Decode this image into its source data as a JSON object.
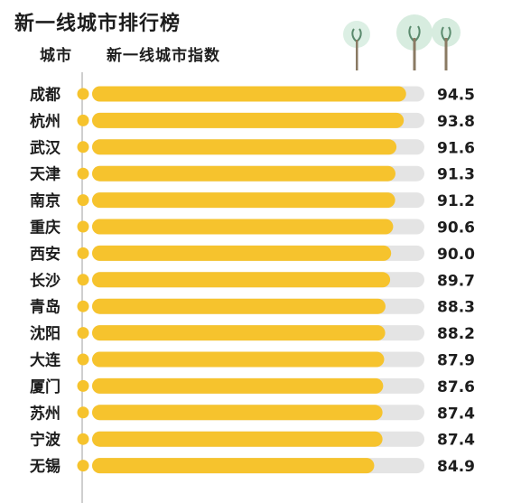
{
  "title": "新一线城市排行榜",
  "header": {
    "col_city": "城市",
    "col_index": "新一线城市指数"
  },
  "colors": {
    "bar": "#f6c32d",
    "track": "#e4e4e4",
    "dot": "#f6c32d",
    "axis": "#cfcfcf",
    "text": "#1d1d1d"
  },
  "chart_data": {
    "type": "bar",
    "orientation": "horizontal",
    "title": "新一线城市排行榜",
    "xlabel": "新一线城市指数",
    "ylabel": "城市",
    "categories": [
      "成都",
      "杭州",
      "武汉",
      "天津",
      "南京",
      "重庆",
      "西安",
      "长沙",
      "青岛",
      "沈阳",
      "大连",
      "厦门",
      "苏州",
      "宁波",
      "无锡"
    ],
    "values": [
      94.5,
      93.8,
      91.6,
      91.3,
      91.2,
      90.6,
      90.0,
      89.7,
      88.3,
      88.2,
      87.9,
      87.6,
      87.4,
      87.4,
      84.9
    ],
    "value_labels": [
      "94.5",
      "93.8",
      "91.6",
      "91.3",
      "91.2",
      "90.6",
      "90.0",
      "89.7",
      "88.3",
      "88.2",
      "87.9",
      "87.6",
      "87.4",
      "87.4",
      "84.9"
    ],
    "xlim": [
      0,
      100
    ],
    "grid": false,
    "legend": "none"
  },
  "icons": [
    "tree-icon",
    "tree-icon",
    "tree-icon"
  ]
}
